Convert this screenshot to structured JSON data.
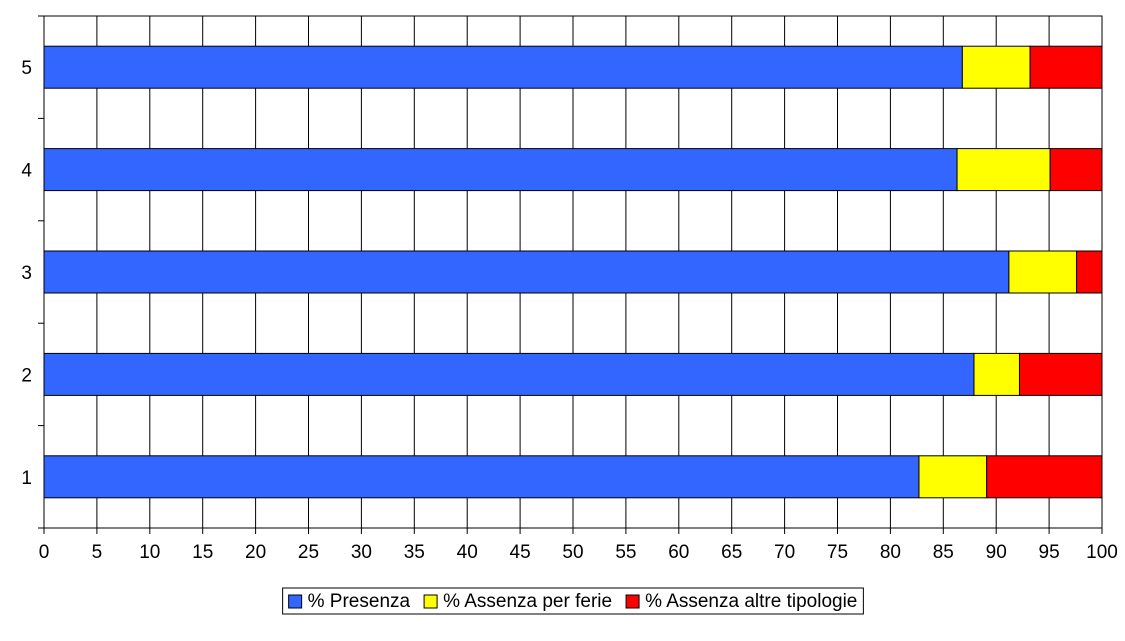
{
  "chart_data": {
    "type": "bar",
    "orientation": "horizontal",
    "stacked": true,
    "categories": [
      "1",
      "2",
      "3",
      "4",
      "5"
    ],
    "series": [
      {
        "name": "% Presenza",
        "color": "#3366ff",
        "values": [
          82.7,
          87.9,
          91.2,
          86.3,
          86.8
        ]
      },
      {
        "name": "% Assenza per ferie",
        "color": "#ffff00",
        "values": [
          6.4,
          4.3,
          6.4,
          8.8,
          6.4
        ]
      },
      {
        "name": "% Assenza altre tipologie",
        "color": "#ff0000",
        "values": [
          10.9,
          7.8,
          2.4,
          4.9,
          6.8
        ]
      }
    ],
    "xlim": [
      0,
      100
    ],
    "xticks": [
      0,
      5,
      10,
      15,
      20,
      25,
      30,
      35,
      40,
      45,
      50,
      55,
      60,
      65,
      70,
      75,
      80,
      85,
      90,
      95,
      100
    ],
    "grid": true,
    "legend_position": "bottom"
  }
}
